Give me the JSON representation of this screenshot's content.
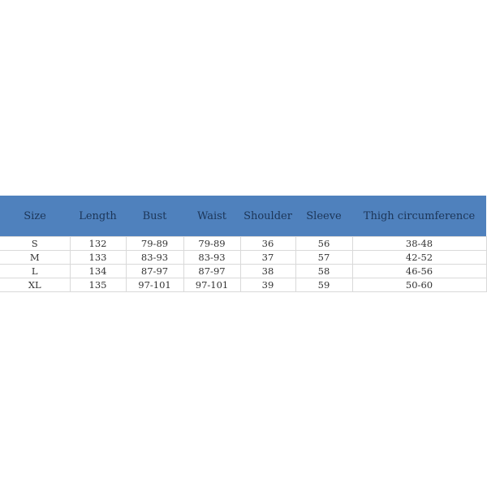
{
  "size_chart": {
    "header_color": "#4f81bd",
    "columns": [
      "Size",
      "Length",
      "Bust",
      "Waist",
      "Shoulder",
      "Sleeve",
      "Thigh circumference"
    ],
    "rows": [
      [
        "S",
        "132",
        "79-89",
        "79-89",
        "36",
        "56",
        "38-48"
      ],
      [
        "M",
        "133",
        "83-93",
        "83-93",
        "37",
        "57",
        "42-52"
      ],
      [
        "L",
        "134",
        "87-97",
        "87-97",
        "38",
        "58",
        "46-56"
      ],
      [
        "XL",
        "135",
        "97-101",
        "97-101",
        "39",
        "59",
        "50-60"
      ]
    ]
  }
}
